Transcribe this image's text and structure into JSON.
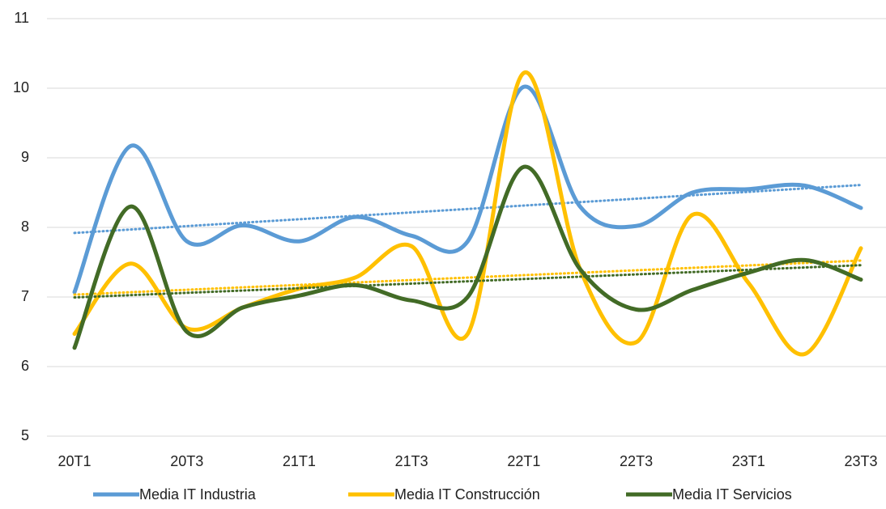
{
  "chart_data": {
    "type": "line",
    "categories": [
      "20T1",
      null,
      "20T3",
      null,
      "21T1",
      null,
      "21T3",
      null,
      "22T1",
      null,
      "22T3",
      null,
      "23T1",
      null,
      "23T3"
    ],
    "series": [
      {
        "name": "Media IT Industria",
        "color": "#5b9bd5",
        "values": [
          7.07,
          9.17,
          7.8,
          8.03,
          7.8,
          8.15,
          7.88,
          7.8,
          10.02,
          8.3,
          8.02,
          8.5,
          8.55,
          8.6,
          8.28
        ]
      },
      {
        "name": "Media IT Construcción",
        "color": "#ffc000",
        "values": [
          6.47,
          7.48,
          6.55,
          6.85,
          7.12,
          7.28,
          7.73,
          6.47,
          10.22,
          7.4,
          6.35,
          8.18,
          7.2,
          6.18,
          7.7
        ]
      },
      {
        "name": "Media IT Servicios",
        "color": "#426b26",
        "values": [
          6.27,
          8.3,
          6.5,
          6.85,
          7.02,
          7.17,
          6.95,
          7.0,
          8.87,
          7.4,
          6.82,
          7.1,
          7.35,
          7.53,
          7.25
        ]
      }
    ],
    "ylim": [
      5,
      11
    ],
    "yticks": [
      5,
      6,
      7,
      8,
      9,
      10,
      11
    ],
    "grid": true,
    "trendline": true,
    "legend": "bottom"
  }
}
